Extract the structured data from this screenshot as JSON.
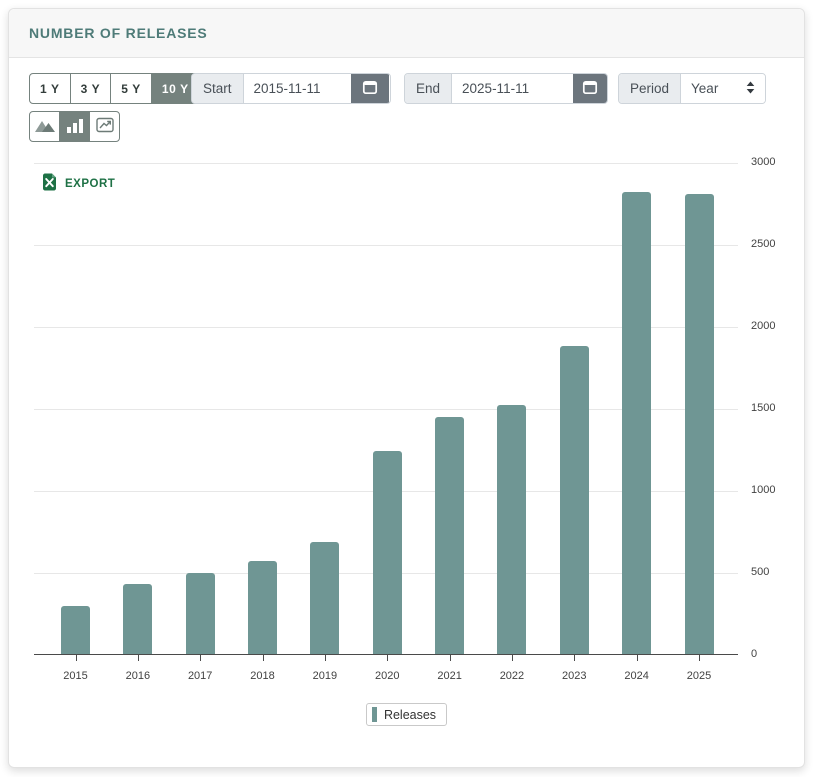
{
  "header": {
    "title": "NUMBER OF RELEASES"
  },
  "controls": {
    "range_buttons": [
      {
        "label": "1 Y",
        "selected": false
      },
      {
        "label": "3 Y",
        "selected": false
      },
      {
        "label": "5 Y",
        "selected": false
      },
      {
        "label": "10 Y",
        "selected": true
      }
    ],
    "start": {
      "label": "Start",
      "value": "2015-11-11"
    },
    "end": {
      "label": "End",
      "value": "2025-11-11"
    },
    "period": {
      "label": "Period",
      "value": "Year"
    },
    "chart_type_buttons": [
      {
        "name": "area-chart",
        "selected": false
      },
      {
        "name": "bar-chart",
        "selected": true
      },
      {
        "name": "line-chart",
        "selected": false
      }
    ]
  },
  "export_label": "EXPORT",
  "legend": {
    "label": "Releases"
  },
  "colors": {
    "bar": "#6f9694",
    "selected_button": "#75827e",
    "calendar_button": "#6c757d",
    "title": "#4e7b78",
    "export_green": "#1e7145",
    "gridline": "#e7e7e7",
    "axis": "#4a4a4a"
  },
  "chart_data": {
    "type": "bar",
    "title": "NUMBER OF RELEASES",
    "categories": [
      "2015",
      "2016",
      "2017",
      "2018",
      "2019",
      "2020",
      "2021",
      "2022",
      "2023",
      "2024",
      "2025"
    ],
    "values": [
      290,
      425,
      495,
      570,
      685,
      1235,
      1445,
      1520,
      1880,
      2815,
      2805
    ],
    "series_name": "Releases",
    "xlabel": "",
    "ylabel": "",
    "ylim": [
      0,
      3000
    ],
    "yticks": [
      0,
      500,
      1000,
      1500,
      2000,
      2500,
      3000
    ],
    "grid": true,
    "y_axis_position": "right",
    "legend_position": "bottom"
  }
}
